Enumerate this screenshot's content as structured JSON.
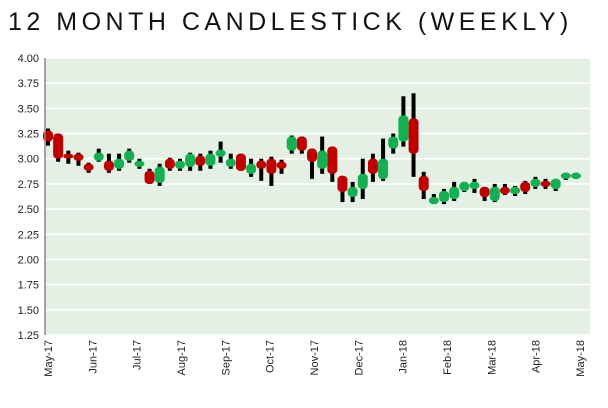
{
  "chart_data": {
    "type": "candlestick",
    "title": "12 MONTH CANDLESTICK (WEEKLY)",
    "xlabel": "",
    "ylabel": "",
    "ylim": [
      1.25,
      4.0
    ],
    "yticks": [
      "4.00",
      "3.75",
      "3.50",
      "3.25",
      "3.00",
      "2.75",
      "2.50",
      "2.25",
      "2.00",
      "1.75",
      "1.50",
      "1.25"
    ],
    "xticks": [
      "May-17",
      "Jun-17",
      "Jul-17",
      "Aug-17",
      "Sep-17",
      "Oct-17",
      "Nov-17",
      "Dec-17",
      "Jan-18",
      "Feb-18",
      "Mar-18",
      "Apr-18",
      "May-18"
    ],
    "grid": true,
    "colors": {
      "up": "#12b050",
      "down": "#c00000",
      "wick": "#000000",
      "background": "#e4f0e4",
      "grid": "#ffffff"
    },
    "candles": [
      [
        3.28,
        3.3,
        3.13,
        3.17
      ],
      [
        3.25,
        3.25,
        2.97,
        3.0
      ],
      [
        3.05,
        3.08,
        2.95,
        3.0
      ],
      [
        3.05,
        3.06,
        2.93,
        2.98
      ],
      [
        2.95,
        2.96,
        2.86,
        2.88
      ],
      [
        2.98,
        3.1,
        2.97,
        3.06
      ],
      [
        2.98,
        3.05,
        2.86,
        2.88
      ],
      [
        2.9,
        3.05,
        2.88,
        3.0
      ],
      [
        2.98,
        3.1,
        2.96,
        3.08
      ],
      [
        2.92,
        3.0,
        2.9,
        2.98
      ],
      [
        2.88,
        2.9,
        2.75,
        2.75
      ],
      [
        2.76,
        2.95,
        2.73,
        2.92
      ],
      [
        3.0,
        3.01,
        2.88,
        2.9
      ],
      [
        2.9,
        3.0,
        2.88,
        2.98
      ],
      [
        2.92,
        3.06,
        2.88,
        3.05
      ],
      [
        3.03,
        3.05,
        2.88,
        2.93
      ],
      [
        2.93,
        3.08,
        2.9,
        3.05
      ],
      [
        3.02,
        3.17,
        2.96,
        3.09
      ],
      [
        2.92,
        3.05,
        2.9,
        3.0
      ],
      [
        3.05,
        3.05,
        2.88,
        2.88
      ],
      [
        2.85,
        3.0,
        2.82,
        2.95
      ],
      [
        2.98,
        3.0,
        2.78,
        2.9
      ],
      [
        3.0,
        3.02,
        2.73,
        2.85
      ],
      [
        2.97,
        2.99,
        2.85,
        2.9
      ],
      [
        3.08,
        3.23,
        3.05,
        3.22
      ],
      [
        3.22,
        3.22,
        3.05,
        3.08
      ],
      [
        3.1,
        3.1,
        2.8,
        2.97
      ],
      [
        2.9,
        3.22,
        2.85,
        3.08
      ],
      [
        3.12,
        3.12,
        2.77,
        2.85
      ],
      [
        2.83,
        2.83,
        2.57,
        2.67
      ],
      [
        2.62,
        2.77,
        2.57,
        2.72
      ],
      [
        2.7,
        3.0,
        2.6,
        2.85
      ],
      [
        3.0,
        3.05,
        2.77,
        2.85
      ],
      [
        2.8,
        3.2,
        2.78,
        3.0
      ],
      [
        3.1,
        3.25,
        3.05,
        3.22
      ],
      [
        3.17,
        3.62,
        3.12,
        3.43
      ],
      [
        3.4,
        3.65,
        2.82,
        3.05
      ],
      [
        2.83,
        2.87,
        2.6,
        2.68
      ],
      [
        2.55,
        2.65,
        2.55,
        2.62
      ],
      [
        2.57,
        2.7,
        2.55,
        2.68
      ],
      [
        2.6,
        2.77,
        2.58,
        2.72
      ],
      [
        2.68,
        2.77,
        2.67,
        2.77
      ],
      [
        2.7,
        2.8,
        2.66,
        2.77
      ],
      [
        2.72,
        2.72,
        2.58,
        2.62
      ],
      [
        2.58,
        2.75,
        2.57,
        2.72
      ],
      [
        2.72,
        2.75,
        2.64,
        2.65
      ],
      [
        2.65,
        2.73,
        2.63,
        2.72
      ],
      [
        2.77,
        2.78,
        2.65,
        2.67
      ],
      [
        2.72,
        2.82,
        2.7,
        2.8
      ],
      [
        2.78,
        2.8,
        2.7,
        2.72
      ],
      [
        2.7,
        2.8,
        2.68,
        2.8
      ],
      [
        2.8,
        2.86,
        2.79,
        2.86
      ],
      [
        2.8,
        2.86,
        2.8,
        2.86
      ]
    ],
    "candle_format": [
      "open",
      "high",
      "low",
      "close"
    ]
  }
}
